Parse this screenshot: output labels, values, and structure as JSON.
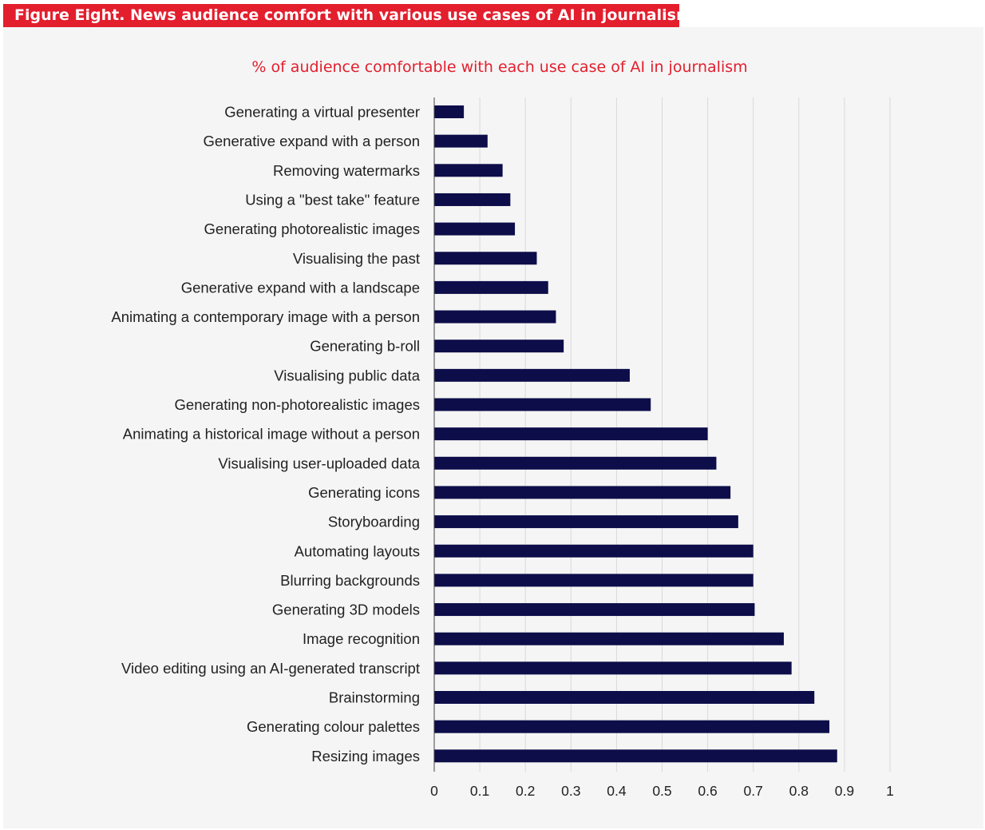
{
  "figure_title": "Figure Eight. News audience comfort with various use cases of AI in journalism",
  "colors": {
    "banner": "#e31e2d",
    "bar": "#0c0d49",
    "subtitle": "#e31e2d",
    "panel": "#f5f5f5",
    "grid": "#d9d9d9"
  },
  "chart_data": {
    "type": "bar",
    "orientation": "horizontal",
    "title": "% of audience comfortable with each use case of AI in journalism",
    "xlabel": "",
    "ylabel": "",
    "xlim": [
      0,
      1
    ],
    "xticks": [
      "0",
      "0.1",
      "0.2",
      "0.3",
      "0.4",
      "0.5",
      "0.6",
      "0.7",
      "0.8",
      "0.9",
      "1"
    ],
    "grid": true,
    "legend": "none",
    "categories": [
      "Generating a virtual presenter",
      "Generative expand with a person",
      "Removing watermarks",
      "Using a \"best take\" feature",
      "Generating photorealistic images",
      "Visualising the past",
      "Generative expand with a landscape",
      "Animating a contemporary image with a person",
      "Generating b-roll",
      "Visualising public data",
      "Generating non-photorealistic images",
      "Animating a historical image without a person",
      "Visualising user-uploaded data",
      "Generating icons",
      "Storyboarding",
      "Automating layouts",
      "Blurring backgrounds",
      "Generating 3D models",
      "Image recognition",
      "Video editing using an AI-generated transcript",
      "Brainstorming",
      "Generating colour palettes",
      "Resizing images"
    ],
    "values": [
      0.065,
      0.117,
      0.15,
      0.167,
      0.177,
      0.225,
      0.25,
      0.267,
      0.284,
      0.429,
      0.475,
      0.6,
      0.619,
      0.65,
      0.667,
      0.7,
      0.7,
      0.703,
      0.767,
      0.784,
      0.834,
      0.867,
      0.884
    ]
  }
}
